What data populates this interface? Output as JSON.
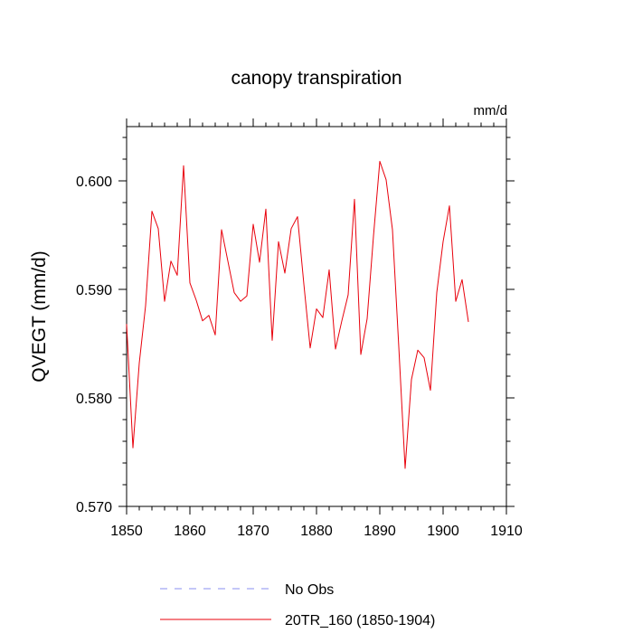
{
  "chart_data": {
    "type": "line",
    "title": "canopy transpiration",
    "units_label": "mm/d",
    "ylabel": "QVEGT  (mm/d)",
    "xlabel": "",
    "xlim": [
      1850,
      1910
    ],
    "ylim": [
      0.57,
      0.605
    ],
    "x_ticks": [
      1850,
      1860,
      1870,
      1880,
      1890,
      1900,
      1910
    ],
    "x_tick_labels": [
      "1850",
      "1860",
      "1870",
      "1880",
      "1890",
      "1900",
      "1910"
    ],
    "y_ticks": [
      0.57,
      0.58,
      0.59,
      0.6
    ],
    "y_tick_labels": [
      "0.570",
      "0.580",
      "0.590",
      "0.600"
    ],
    "grid": false,
    "legend_position": "bottom",
    "series": [
      {
        "name": "20TR_160 (1850-1904)",
        "color": "#e8000b",
        "style": "solid",
        "x": [
          1850,
          1851,
          1852,
          1853,
          1854,
          1855,
          1856,
          1857,
          1858,
          1859,
          1860,
          1861,
          1862,
          1863,
          1864,
          1865,
          1866,
          1867,
          1868,
          1869,
          1870,
          1871,
          1872,
          1873,
          1874,
          1875,
          1876,
          1877,
          1878,
          1879,
          1880,
          1881,
          1882,
          1883,
          1884,
          1885,
          1886,
          1887,
          1888,
          1889,
          1890,
          1891,
          1892,
          1893,
          1894,
          1895,
          1896,
          1897,
          1898,
          1899,
          1900,
          1901,
          1902,
          1903,
          1904
        ],
        "values": [
          0.5868,
          0.5754,
          0.5832,
          0.5885,
          0.5972,
          0.5956,
          0.5889,
          0.5926,
          0.5913,
          0.6014,
          0.5906,
          0.589,
          0.5871,
          0.5876,
          0.5858,
          0.5955,
          0.5926,
          0.5897,
          0.5889,
          0.5894,
          0.596,
          0.5925,
          0.5974,
          0.5853,
          0.5944,
          0.5915,
          0.5956,
          0.5967,
          0.5905,
          0.5846,
          0.5882,
          0.5874,
          0.5918,
          0.5845,
          0.5871,
          0.5895,
          0.5983,
          0.584,
          0.5873,
          0.5949,
          0.6018,
          0.6001,
          0.5955,
          0.5847,
          0.5735,
          0.5817,
          0.5844,
          0.5837,
          0.5807,
          0.5897,
          0.5944,
          0.5977,
          0.5889,
          0.5909,
          0.587
        ]
      }
    ],
    "legend": [
      {
        "label": "No Obs",
        "color": "#8a8ff0",
        "style": "dashed"
      },
      {
        "label": "20TR_160 (1850-1904)",
        "color": "#e8000b",
        "style": "solid"
      }
    ]
  }
}
